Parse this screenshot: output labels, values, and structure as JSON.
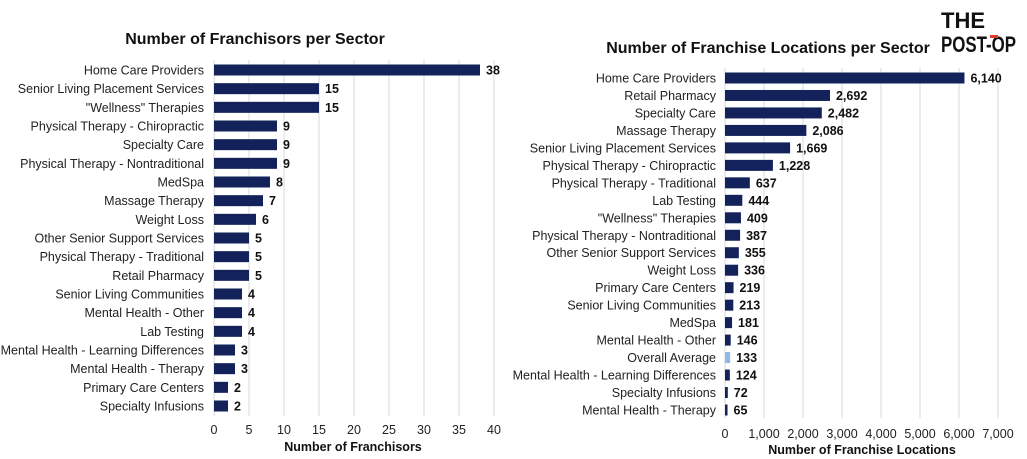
{
  "brand": {
    "logo_line1": "THE",
    "logo_line2": "POST-OP"
  },
  "colors": {
    "bar": "#13225a",
    "highlight": "#8fb8e6",
    "grid": "#d9d9d9",
    "logo_accent": "#e23b2a"
  },
  "chart_data": [
    {
      "type": "bar",
      "orientation": "horizontal",
      "title": "Number of Franchisors per Sector",
      "xlabel": "Number of Franchisors",
      "ylabel": "",
      "xlim": [
        0,
        40
      ],
      "ticks": [
        0,
        5,
        10,
        15,
        20,
        25,
        30,
        35,
        40
      ],
      "grid": true,
      "categories": [
        "Home Care Providers",
        "Senior Living Placement Services",
        "\"Wellness\" Therapies",
        "Physical Therapy - Chiropractic",
        "Specialty Care",
        "Physical Therapy - Nontraditional",
        "MedSpa",
        "Massage Therapy",
        "Weight Loss",
        "Other Senior Support Services",
        "Physical Therapy - Traditional",
        "Retail Pharmacy",
        "Senior Living Communities",
        "Mental Health - Other",
        "Lab Testing",
        "Mental Health - Learning Differences",
        "Mental Health - Therapy",
        "Primary Care Centers",
        "Specialty Infusions"
      ],
      "values": [
        38,
        15,
        15,
        9,
        9,
        9,
        8,
        7,
        6,
        5,
        5,
        5,
        4,
        4,
        4,
        3,
        3,
        2,
        2
      ],
      "value_labels": [
        "38",
        "15",
        "15",
        "9",
        "9",
        "9",
        "8",
        "7",
        "6",
        "5",
        "5",
        "5",
        "4",
        "4",
        "4",
        "3",
        "3",
        "2",
        "2"
      ],
      "tick_labels": [
        "0",
        "5",
        "10",
        "15",
        "20",
        "25",
        "30",
        "35",
        "40"
      ]
    },
    {
      "type": "bar",
      "orientation": "horizontal",
      "title": "Number of Franchise Locations per Sector",
      "xlabel": "Number of Franchise Locations",
      "ylabel": "",
      "xlim": [
        0,
        7000
      ],
      "ticks": [
        0,
        1000,
        2000,
        3000,
        4000,
        5000,
        6000,
        7000
      ],
      "grid": true,
      "categories": [
        "Home Care Providers",
        "Retail Pharmacy",
        "Specialty Care",
        "Massage Therapy",
        "Senior Living Placement Services",
        "Physical Therapy - Chiropractic",
        "Physical Therapy - Traditional",
        "Lab Testing",
        "\"Wellness\" Therapies",
        "Physical Therapy - Nontraditional",
        "Other Senior Support Services",
        "Weight Loss",
        "Primary Care Centers",
        "Senior Living Communities",
        "MedSpa",
        "Mental Health - Other",
        "Overall Average",
        "Mental Health - Learning Differences",
        "Specialty Infusions",
        "Mental Health - Therapy"
      ],
      "values": [
        6140,
        2692,
        2482,
        2086,
        1669,
        1228,
        637,
        444,
        409,
        387,
        355,
        336,
        219,
        213,
        181,
        146,
        133,
        124,
        72,
        65
      ],
      "value_labels": [
        "6,140",
        "2,692",
        "2,482",
        "2,086",
        "1,669",
        "1,228",
        "637",
        "444",
        "409",
        "387",
        "355",
        "336",
        "219",
        "213",
        "181",
        "146",
        "133",
        "124",
        "72",
        "65"
      ],
      "highlight_category": "Overall Average",
      "tick_labels": [
        "0",
        "1,000",
        "2,000",
        "3,000",
        "4,000",
        "5,000",
        "6,000",
        "7,000"
      ]
    }
  ]
}
